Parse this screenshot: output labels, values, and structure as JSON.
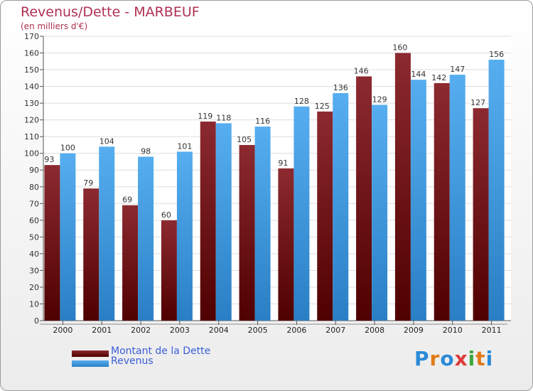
{
  "title": "Revenus/Dette - MARBEUF",
  "subtitle": "(en milliers d'€)",
  "logo_text": "Proxiti",
  "colors": {
    "title": "#b03050",
    "dette": "#7a1a1e",
    "revenus": "#4aa3e6",
    "legend_text": "#3b5ed8"
  },
  "chart_data": {
    "type": "bar",
    "categories": [
      "2000",
      "2001",
      "2002",
      "2003",
      "2004",
      "2005",
      "2006",
      "2007",
      "2008",
      "2009",
      "2010",
      "2011"
    ],
    "series": [
      {
        "name": "Montant de la Dette",
        "values": [
          93,
          79,
          69,
          60,
          119,
          105,
          91,
          125,
          146,
          160,
          142,
          127
        ]
      },
      {
        "name": "Revenus",
        "values": [
          100,
          104,
          98,
          101,
          118,
          116,
          128,
          136,
          129,
          144,
          147,
          156
        ]
      }
    ],
    "title": "Revenus/Dette - MARBEUF",
    "subtitle": "(en milliers d'€)",
    "xlabel": "",
    "ylabel": "",
    "ylim": [
      0,
      170
    ],
    "ytick_step": 10,
    "grid": true,
    "legend_position": "bottom-left"
  }
}
